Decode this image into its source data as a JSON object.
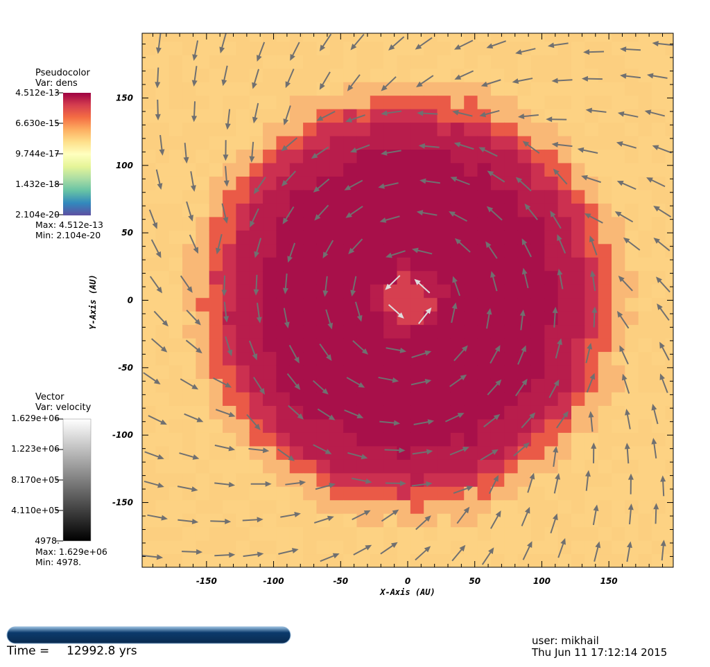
{
  "chart_data": {
    "type": "heatmap",
    "description_var": "dens",
    "xlabel": "X-Axis (AU)",
    "ylabel": "Y-Axis (AU)",
    "xlim": [
      -198,
      198
    ],
    "ylim": [
      -198,
      198
    ],
    "xticks": [
      -150,
      -100,
      -50,
      0,
      50,
      100,
      150
    ],
    "yticks": [
      150,
      100,
      50,
      0,
      -50,
      -100,
      -150
    ],
    "pseudocolor": {
      "title": "Pseudocolor",
      "var": "Var: dens",
      "ticks": [
        "4.512e-13",
        "6.630e-15",
        "9.744e-17",
        "1.432e-18",
        "2.104e-20"
      ],
      "max_label": "Max:  4.512e-13",
      "min_label": "Min:  2.104e-20",
      "colormap": [
        "#9e0142",
        "#d53e4f",
        "#f46d43",
        "#fdae61",
        "#fee08b",
        "#ffffbf",
        "#e6f598",
        "#abdda4",
        "#66c2a5",
        "#3288bd",
        "#5e4fa2"
      ]
    },
    "vector": {
      "title": "Vector",
      "var": "Var: velocity",
      "ticks": [
        "1.629e+06",
        "1.223e+06",
        "8.170e+05",
        "4.110e+05",
        "4978."
      ],
      "max_label": "Max:  1.629e+06",
      "min_label": "Min:  4978."
    },
    "density_colors": {
      "core": "#d63f50",
      "disk": "#a8104a",
      "edge": "#ea5a47",
      "outer": "#f9b876",
      "background": "#fdd283"
    },
    "vortex": {
      "rotation": "counterclockwise",
      "disk_radius_au": 150,
      "core_radius_au": 18
    }
  },
  "footer": {
    "time_label": "Time =",
    "time_value": "12992.8 yrs",
    "user": "user: mikhail",
    "date": "Thu Jun 11 17:12:14 2015"
  }
}
